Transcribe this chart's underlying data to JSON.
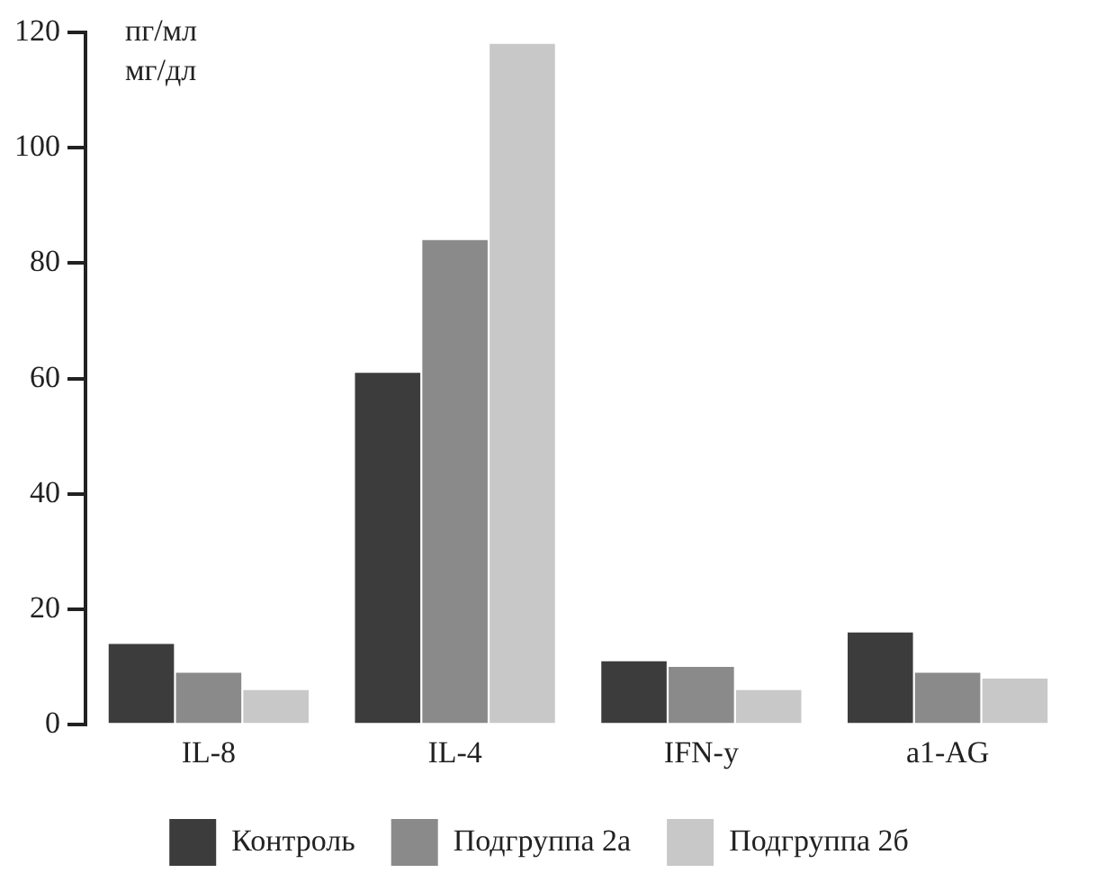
{
  "chart_data": {
    "type": "bar",
    "ylabel": "пг/мл\nмг/дл",
    "categories": [
      "IL-8",
      "IL-4",
      "IFN-y",
      "a1-AG"
    ],
    "series": [
      {
        "name": "Контроль",
        "color": "#3c3c3c",
        "values": [
          14,
          61,
          11,
          16
        ]
      },
      {
        "name": "Подгруппа 2а",
        "color": "#8a8a8a",
        "values": [
          9,
          84,
          10,
          9
        ]
      },
      {
        "name": "Подгруппа 2б",
        "color": "#c8c8c8",
        "values": [
          6,
          118,
          6,
          8
        ]
      }
    ],
    "ylim": [
      0,
      120
    ],
    "yticks": [
      0,
      20,
      40,
      60,
      80,
      100,
      120
    ],
    "grid": false,
    "legend": "bottom"
  }
}
